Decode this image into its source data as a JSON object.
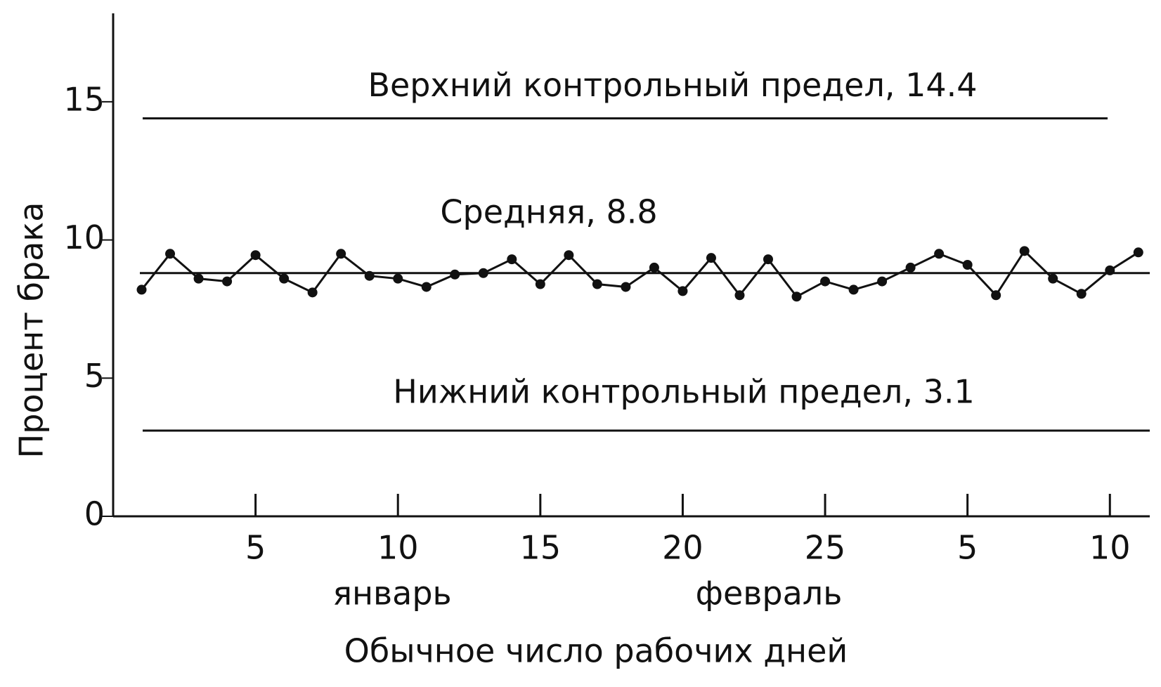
{
  "chart_data": {
    "type": "line",
    "y_label": "Процент брака",
    "x_label": "Обычное число рабочих дней",
    "annotations": [
      "январь",
      "февраль"
    ],
    "x": [
      1,
      2,
      3,
      4,
      5,
      6,
      7,
      8,
      9,
      10,
      11,
      12,
      13,
      14,
      15,
      16,
      17,
      18,
      19,
      20,
      21,
      22,
      23,
      24,
      25,
      26,
      27,
      28,
      29,
      30,
      31,
      32,
      33,
      34,
      35,
      36
    ],
    "series": [
      {
        "color": "#111111",
        "values": [
          8.2,
          9.5,
          8.6,
          8.5,
          9.45,
          8.6,
          8.1,
          9.5,
          8.7,
          8.6,
          8.3,
          8.75,
          8.8,
          9.3,
          8.4,
          9.45,
          8.4,
          8.3,
          9.0,
          8.15,
          9.35,
          8.0,
          9.3,
          7.95,
          8.5,
          8.2,
          8.5,
          9.0,
          9.5,
          9.1,
          8.0,
          9.6,
          8.6,
          8.05,
          8.9,
          9.55
        ]
      }
    ],
    "reference_lines": [
      {
        "label": "Верхний контрольный предел, 14.4",
        "value": 14.4
      },
      {
        "label": "Средняя, 8.8",
        "value": 8.8
      },
      {
        "label": "Нижний контрольный предел, 3.1",
        "value": 3.1
      }
    ],
    "xlim": [
      0,
      36.4
    ],
    "ylim": [
      0,
      18.2
    ],
    "xticks": [
      5,
      10,
      15,
      20,
      25,
      {
        "value": 30,
        "label": "5"
      },
      {
        "value": 35,
        "label": "10"
      }
    ],
    "yticks": [
      0,
      5,
      10,
      15
    ]
  }
}
